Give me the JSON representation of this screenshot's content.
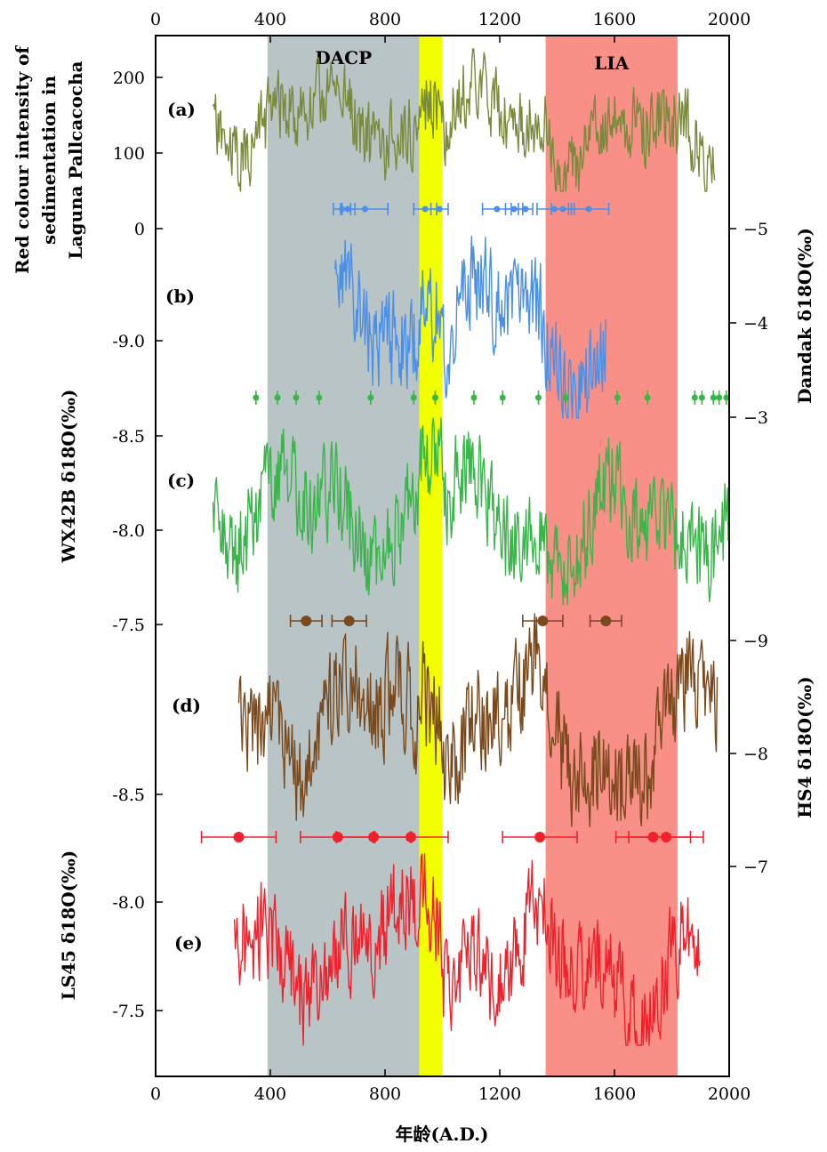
{
  "chart_data": {
    "type": "line",
    "xaxis": {
      "label": "年龄(A.D.)",
      "range": [
        0,
        2000
      ],
      "ticks": [
        0,
        400,
        800,
        1200,
        1600,
        2000
      ],
      "tick_labels": [
        "0",
        "400",
        "800",
        "1200",
        "1600",
        "2000"
      ]
    },
    "periods": [
      {
        "name": "DACP",
        "label": "DACP",
        "start": 390,
        "end": 920,
        "color": "#b8c4c6"
      },
      {
        "name": "yellow-band",
        "label": "",
        "start": 920,
        "end": 1000,
        "color": "#f1ff00"
      },
      {
        "name": "LIA",
        "label": "LIA",
        "start": 1360,
        "end": 1820,
        "color": "#f99088"
      }
    ],
    "panels": [
      {
        "id": "a",
        "label": "(a)",
        "color": "#7a8a3c",
        "axis_side": "left",
        "axis_label_lines": [
          "Red colour intensity of",
          "sedimentation in",
          "Laguna Pallcacocha"
        ],
        "ticks": [
          0,
          100,
          200
        ],
        "tick_labels": [
          "0",
          "100",
          "200"
        ],
        "x_range": [
          200,
          1950
        ],
        "center": 90,
        "amplitude": 75,
        "noise_seed": 11,
        "dating_points": [],
        "dating_errors": []
      },
      {
        "id": "b",
        "label": "(b)",
        "color": "#4b90e6",
        "axis_side": "right",
        "axis_label": "Dandak δ18O(‰)",
        "ticks": [
          -5,
          -4,
          -3
        ],
        "tick_labels": [
          "−5",
          "−4",
          "−3"
        ],
        "x_range": [
          625,
          1570
        ],
        "center": -4.4,
        "amplitude": 0.55,
        "noise_seed": 23,
        "dating_points": [
          650,
          670,
          730,
          940,
          990,
          1190,
          1250,
          1290,
          1390,
          1420,
          1510
        ],
        "dating_errors": [
          30,
          25,
          80,
          40,
          30,
          50,
          30,
          25,
          60,
          40,
          70
        ]
      },
      {
        "id": "c",
        "label": "(c)",
        "color": "#39b54a",
        "axis_side": "left",
        "axis_label": "WX42B δ18O(‰)",
        "ticks": [
          -9.0,
          -8.5,
          -8.0,
          -7.5
        ],
        "tick_labels": [
          "-9.0",
          "-8.5",
          "-8.0",
          "-7.5"
        ],
        "x_range": [
          200,
          2000
        ],
        "center": -8.25,
        "amplitude": 0.28,
        "noise_seed": 37,
        "dating_points": [
          350,
          425,
          490,
          570,
          750,
          900,
          975,
          1110,
          1210,
          1335,
          1430,
          1610,
          1715,
          1880,
          1905,
          1945,
          1965,
          1990
        ],
        "dating_errors": [
          10,
          10,
          10,
          10,
          10,
          10,
          10,
          10,
          10,
          10,
          10,
          10,
          10,
          10,
          10,
          10,
          10,
          10
        ]
      },
      {
        "id": "d",
        "label": "(d)",
        "color": "#7a4a1e",
        "axis_side": "right",
        "axis_label": "HS4 δ18O(‰)",
        "ticks": [
          -9,
          -8,
          -7
        ],
        "tick_labels": [
          "−9",
          "−8",
          "−7"
        ],
        "x_range": [
          290,
          1960
        ],
        "center": -8.2,
        "amplitude": 0.45,
        "noise_seed": 53,
        "dating_points": [
          525,
          675,
          1350,
          1570
        ],
        "dating_errors": [
          55,
          60,
          70,
          55
        ]
      },
      {
        "id": "e",
        "label": "(e)",
        "color": "#f2202a",
        "axis_side": "left",
        "axis_label": "LS45 δ18O(‰)",
        "ticks": [
          -8.5,
          -8.0,
          -7.5
        ],
        "tick_labels": [
          "-8.5",
          "-8.0",
          "-7.5"
        ],
        "x_range": [
          275,
          1900
        ],
        "center": -7.8,
        "amplitude": 0.25,
        "noise_seed": 71,
        "dating_points": [
          290,
          635,
          760,
          890,
          1340,
          1735,
          1780
        ],
        "dating_errors": [
          130,
          130,
          130,
          130,
          130,
          130,
          130
        ]
      }
    ]
  }
}
